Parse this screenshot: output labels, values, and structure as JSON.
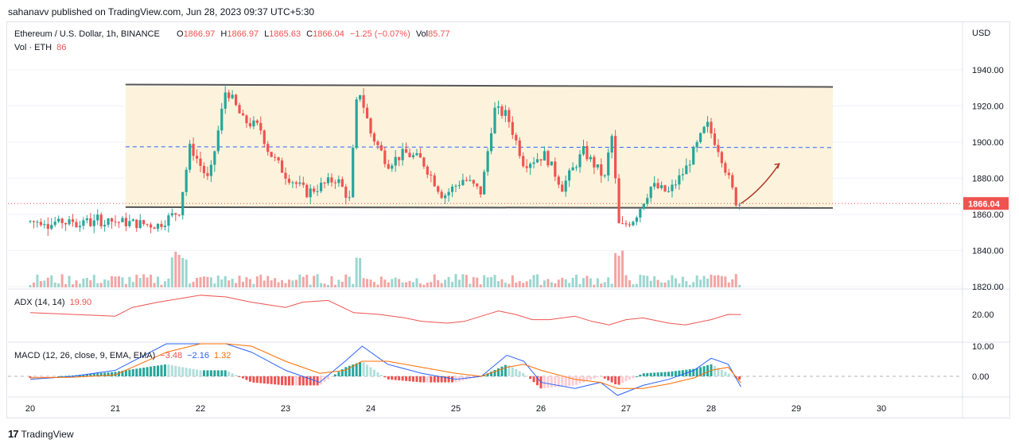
{
  "header": {
    "published": "sahanavv published on TradingView.com, Jun 28, 2023 09:37 UTC+5:30"
  },
  "legend": {
    "symbol": "Ethereum / U.S. Dollar, 1h, BINANCE",
    "o_label": "O",
    "o": "1866.97",
    "h_label": "H",
    "h": "1866.97",
    "l_label": "L",
    "l": "1865.63",
    "c_label": "C",
    "c": "1866.04",
    "change": "−1.25 (−0.07%)",
    "vol_label": "Vol",
    "vol": "85.77",
    "vol2_label": "Vol · ETH",
    "vol2": "86"
  },
  "adx_legend": {
    "name": "ADX (14, 14)",
    "value": "19.90"
  },
  "macd_legend": {
    "name": "MACD (12, 26, close, 9, EMA, EMA)",
    "v1": "−3.48",
    "v2": "−2.16",
    "v3": "1.32"
  },
  "axis": {
    "currency": "USD",
    "price_ticks": [
      "1940.00",
      "1920.00",
      "1900.00",
      "1880.00",
      "1860.00",
      "1840.00",
      "1820.00"
    ],
    "last_price": "1866.04",
    "adx_ticks": [
      "20.00"
    ],
    "macd_ticks": [
      "10.00",
      "0.00"
    ],
    "time_ticks": [
      "20",
      "21",
      "22",
      "23",
      "24",
      "25",
      "26",
      "27",
      "28",
      "29",
      "30"
    ]
  },
  "footer": {
    "brand": "TradingView"
  },
  "colors": {
    "up": "#26a69a",
    "down": "#ef5350",
    "zone": "#fdf3dc",
    "adx": "#ef5350",
    "macd": "#2962ff",
    "signal": "#ff6d00",
    "arrow": "#b03a2e"
  },
  "chart_data": [
    {
      "type": "candlestick",
      "title": "Ethereum / U.S. Dollar, 1h, BINANCE",
      "x_unit": "day of June 2023",
      "y_unit": "USD",
      "ylim": [
        1820,
        1950
      ],
      "y_ticks": [
        1820,
        1840,
        1860,
        1880,
        1900,
        1920,
        1940
      ],
      "annotations": {
        "range_top": 1931,
        "range_bottom": 1864,
        "range_mid_dashed": 1897,
        "range_start_day": 21.12,
        "range_end_day": 29.43,
        "last_price": 1866.04,
        "projection_arrow": [
          [
            28.35,
            1866
          ],
          [
            28.6,
            1874
          ],
          [
            28.8,
            1888
          ]
        ]
      },
      "anchors": [
        [
          21.0,
          1856
        ],
        [
          21.5,
          1854
        ],
        [
          21.75,
          1862
        ],
        [
          21.88,
          1898
        ],
        [
          22.1,
          1878
        ],
        [
          22.3,
          1930
        ],
        [
          22.5,
          1912
        ],
        [
          22.7,
          1908
        ],
        [
          22.8,
          1895
        ],
        [
          23.0,
          1882
        ],
        [
          23.25,
          1872
        ],
        [
          23.6,
          1880
        ],
        [
          23.75,
          1868
        ],
        [
          23.85,
          1932
        ],
        [
          24.0,
          1905
        ],
        [
          24.2,
          1888
        ],
        [
          24.4,
          1894
        ],
        [
          24.6,
          1890
        ],
        [
          24.85,
          1870
        ],
        [
          25.1,
          1880
        ],
        [
          25.3,
          1872
        ],
        [
          25.45,
          1918
        ],
        [
          25.6,
          1915
        ],
        [
          25.8,
          1888
        ],
        [
          26.05,
          1893
        ],
        [
          26.25,
          1875
        ],
        [
          26.5,
          1895
        ],
        [
          26.75,
          1880
        ],
        [
          26.83,
          1905
        ],
        [
          26.92,
          1852
        ],
        [
          27.1,
          1858
        ],
        [
          27.3,
          1876
        ],
        [
          27.5,
          1872
        ],
        [
          27.7,
          1885
        ],
        [
          27.85,
          1900
        ],
        [
          27.95,
          1910
        ],
        [
          28.1,
          1895
        ],
        [
          28.3,
          1866
        ],
        [
          28.35,
          1866
        ]
      ],
      "volume_note": "volume histogram along bottom of price pane"
    },
    {
      "type": "line",
      "title": "ADX (14, 14)",
      "ylim": [
        0,
        40
      ],
      "y_ticks": [
        20
      ],
      "series": [
        {
          "name": "ADX",
          "last": 19.9,
          "points": [
            [
              20.0,
              21
            ],
            [
              20.5,
              20
            ],
            [
              21.0,
              19
            ],
            [
              21.2,
              24
            ],
            [
              21.5,
              27
            ],
            [
              22.0,
              31
            ],
            [
              22.3,
              30
            ],
            [
              22.6,
              27
            ],
            [
              23.0,
              24
            ],
            [
              23.2,
              27
            ],
            [
              23.5,
              28
            ],
            [
              23.8,
              21
            ],
            [
              24.1,
              20
            ],
            [
              24.4,
              18
            ],
            [
              24.6,
              16
            ],
            [
              24.9,
              15
            ],
            [
              25.1,
              16
            ],
            [
              25.3,
              19
            ],
            [
              25.5,
              22
            ],
            [
              25.7,
              20
            ],
            [
              25.9,
              17
            ],
            [
              26.1,
              17
            ],
            [
              26.4,
              19
            ],
            [
              26.6,
              16
            ],
            [
              26.8,
              14
            ],
            [
              27.0,
              17
            ],
            [
              27.2,
              18
            ],
            [
              27.5,
              15
            ],
            [
              27.7,
              14
            ],
            [
              28.0,
              17
            ],
            [
              28.2,
              20
            ],
            [
              28.35,
              19.9
            ]
          ]
        }
      ]
    },
    {
      "type": "line+bar",
      "title": "MACD (12, 26, close, 9, EMA, EMA)",
      "ylim": [
        -12,
        18
      ],
      "y_ticks": [
        0,
        10
      ],
      "values_shown": {
        "macd": -3.48,
        "signal": -2.16,
        "histogram": 1.32
      },
      "series": [
        {
          "name": "MACD",
          "points": [
            [
              20.0,
              -1
            ],
            [
              20.5,
              0
            ],
            [
              21.0,
              2
            ],
            [
              21.6,
              12
            ],
            [
              22.0,
              13
            ],
            [
              22.3,
              14
            ],
            [
              22.6,
              8
            ],
            [
              23.0,
              2
            ],
            [
              23.4,
              -2
            ],
            [
              23.7,
              5
            ],
            [
              23.9,
              10
            ],
            [
              24.2,
              4
            ],
            [
              24.6,
              1
            ],
            [
              25.0,
              -1
            ],
            [
              25.3,
              0
            ],
            [
              25.6,
              7
            ],
            [
              25.8,
              5
            ],
            [
              26.0,
              -2
            ],
            [
              26.4,
              -4
            ],
            [
              26.7,
              -2
            ],
            [
              26.9,
              -7
            ],
            [
              27.2,
              -3
            ],
            [
              27.5,
              -1
            ],
            [
              27.8,
              2
            ],
            [
              28.0,
              6
            ],
            [
              28.2,
              4
            ],
            [
              28.35,
              -3.48
            ]
          ]
        },
        {
          "name": "Signal",
          "points": [
            [
              20.0,
              -0.5
            ],
            [
              20.5,
              -0.3
            ],
            [
              21.0,
              0.5
            ],
            [
              21.6,
              8
            ],
            [
              22.0,
              11
            ],
            [
              22.3,
              12
            ],
            [
              22.6,
              10
            ],
            [
              23.0,
              5
            ],
            [
              23.4,
              1
            ],
            [
              23.7,
              2
            ],
            [
              23.9,
              5
            ],
            [
              24.2,
              5
            ],
            [
              24.6,
              3
            ],
            [
              25.0,
              1
            ],
            [
              25.3,
              0
            ],
            [
              25.6,
              3
            ],
            [
              25.8,
              4
            ],
            [
              26.0,
              2
            ],
            [
              26.4,
              -1
            ],
            [
              26.7,
              -2
            ],
            [
              26.9,
              -4
            ],
            [
              27.2,
              -4
            ],
            [
              27.5,
              -2.5
            ],
            [
              27.8,
              -0.5
            ],
            [
              28.0,
              2
            ],
            [
              28.2,
              3
            ],
            [
              28.35,
              -2.16
            ]
          ]
        }
      ]
    }
  ]
}
